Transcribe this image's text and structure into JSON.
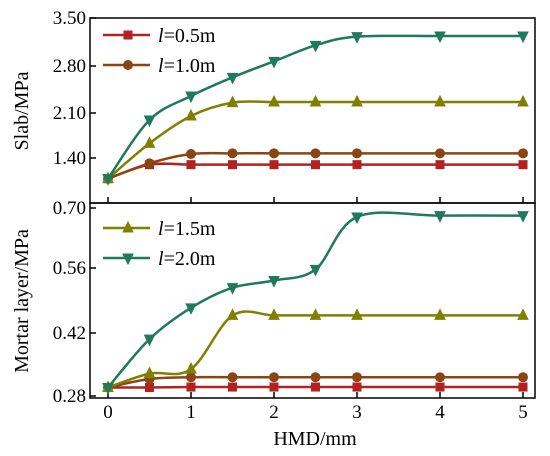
{
  "chart_data": [
    {
      "type": "line",
      "ylabel": "Slab/MPa",
      "xlim": [
        0,
        5
      ],
      "ylim": [
        0.9,
        3.5
      ],
      "yticks": [
        "1.40",
        "2.10",
        "2.80",
        "3.50"
      ],
      "legend": [
        "l=0.5m",
        "l=1.0m"
      ],
      "series": [
        {
          "name": "l=0.5m",
          "color": "#b22222",
          "marker": "square",
          "x": [
            0,
            0.5,
            1,
            1.5,
            2,
            2.5,
            3,
            4,
            5
          ],
          "y": [
            1.09,
            1.3,
            1.3,
            1.3,
            1.3,
            1.3,
            1.3,
            1.3,
            1.3
          ]
        },
        {
          "name": "l=1.0m",
          "color": "#8b4513",
          "marker": "circle",
          "x": [
            0,
            0.5,
            1,
            1.5,
            2,
            2.5,
            3,
            4,
            5
          ],
          "y": [
            1.09,
            1.32,
            1.46,
            1.47,
            1.47,
            1.47,
            1.47,
            1.47,
            1.47
          ]
        },
        {
          "name": "l=1.5m",
          "color": "#808000",
          "marker": "triangle-up",
          "x": [
            0,
            0.5,
            1,
            1.5,
            2,
            2.5,
            3,
            4,
            5
          ],
          "y": [
            1.09,
            1.62,
            2.03,
            2.23,
            2.24,
            2.24,
            2.24,
            2.24,
            2.24
          ]
        },
        {
          "name": "l=2.0m",
          "color": "#1f7a5a",
          "marker": "triangle-down",
          "x": [
            0,
            0.5,
            1,
            1.5,
            2,
            2.5,
            3,
            4,
            5
          ],
          "y": [
            1.09,
            1.97,
            2.33,
            2.61,
            2.85,
            3.09,
            3.22,
            3.23,
            3.23
          ]
        }
      ]
    },
    {
      "type": "line",
      "ylabel": "Mortar layer/MPa",
      "xlabel": "HMD/mm",
      "xlim": [
        0,
        5
      ],
      "ylim": [
        0.28,
        0.7
      ],
      "xticks": [
        "0",
        "1",
        "2",
        "3",
        "4",
        "5"
      ],
      "yticks": [
        "0.28",
        "0.42",
        "0.56",
        "0.70"
      ],
      "legend": [
        "l=1.5m",
        "l=2.0m"
      ],
      "series": [
        {
          "name": "l=0.5m",
          "color": "#b22222",
          "marker": "square",
          "x": [
            0,
            0.5,
            1,
            1.5,
            2,
            2.5,
            3,
            4,
            5
          ],
          "y": [
            0.299,
            0.299,
            0.3,
            0.3,
            0.3,
            0.3,
            0.3,
            0.3,
            0.3
          ]
        },
        {
          "name": "l=1.0m",
          "color": "#8b4513",
          "marker": "circle",
          "x": [
            0,
            0.5,
            1,
            1.5,
            2,
            2.5,
            3,
            4,
            5
          ],
          "y": [
            0.299,
            0.318,
            0.322,
            0.322,
            0.322,
            0.322,
            0.322,
            0.322,
            0.322
          ]
        },
        {
          "name": "l=1.5m",
          "color": "#808000",
          "marker": "triangle-up",
          "x": [
            0,
            0.5,
            1,
            1.5,
            2,
            2.5,
            3,
            4,
            5
          ],
          "y": [
            0.299,
            0.33,
            0.34,
            0.46,
            0.46,
            0.46,
            0.46,
            0.46,
            0.46
          ]
        },
        {
          "name": "l=2.0m",
          "color": "#1f7a5a",
          "marker": "triangle-down",
          "x": [
            0,
            0.5,
            1,
            1.5,
            2,
            2.5,
            3,
            4,
            5
          ],
          "y": [
            0.299,
            0.407,
            0.477,
            0.522,
            0.538,
            0.563,
            0.68,
            0.683,
            0.683
          ]
        }
      ]
    }
  ]
}
